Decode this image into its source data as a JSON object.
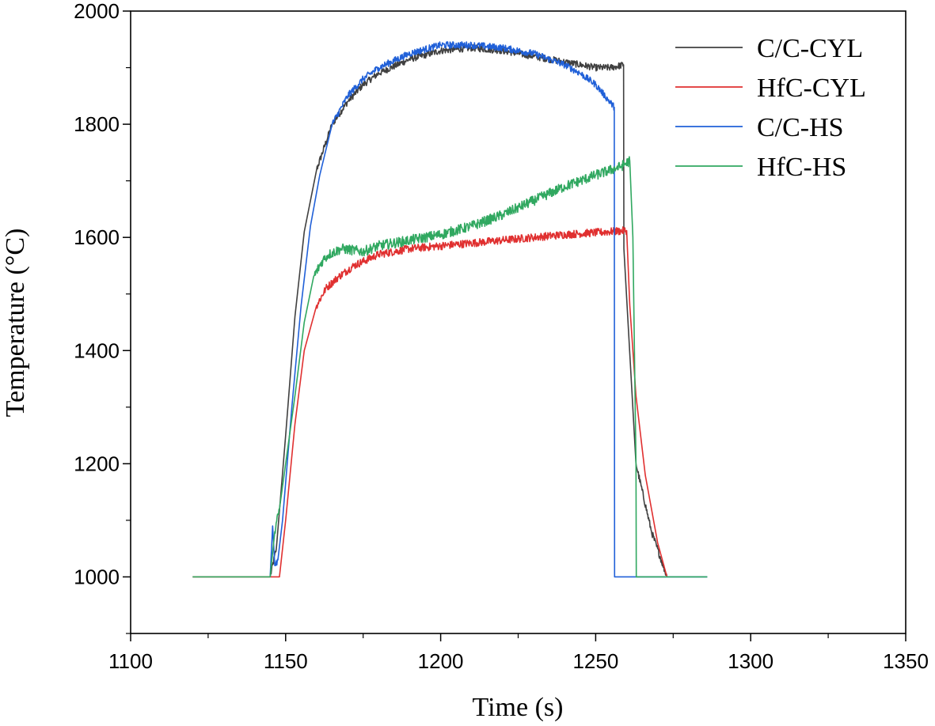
{
  "chart_data": {
    "type": "line",
    "title": "",
    "xlabel": "Time (s)",
    "ylabel": "Temperature (°C)",
    "xlim": [
      1100,
      1350
    ],
    "ylim": [
      900,
      2000
    ],
    "xticks": [
      1100,
      1150,
      1200,
      1250,
      1300,
      1350
    ],
    "xtick_labels": [
      "1100",
      "1150",
      "1200",
      "1250",
      "1300",
      "1350"
    ],
    "yticks": [
      1000,
      1200,
      1400,
      1600,
      1800,
      2000
    ],
    "ytick_labels": [
      "1000",
      "1200",
      "1400",
      "1600",
      "1800",
      "2000"
    ],
    "legend_position": "top-right",
    "grid": false,
    "series": [
      {
        "name": "C/C-CYL",
        "color": "#404040",
        "noise": 6,
        "x": [
          1145,
          1147,
          1150,
          1153,
          1156,
          1160,
          1165,
          1170,
          1175,
          1180,
          1190,
          1200,
          1210,
          1220,
          1230,
          1240,
          1250,
          1255,
          1259,
          1259.1,
          1263,
          1268,
          1273
        ],
        "y": [
          1000,
          1050,
          1250,
          1460,
          1610,
          1720,
          1800,
          1840,
          1870,
          1890,
          1915,
          1930,
          1935,
          1930,
          1920,
          1910,
          1900,
          1900,
          1905,
          1580,
          1200,
          1080,
          1000
        ]
      },
      {
        "name": "HfC-CYL",
        "color": "#e03030",
        "noise": 7,
        "x": [
          1120,
          1148,
          1150,
          1153,
          1156,
          1160,
          1163,
          1167,
          1172,
          1180,
          1190,
          1200,
          1220,
          1240,
          1260,
          1261,
          1263,
          1266,
          1270,
          1273
        ],
        "y": [
          1000,
          1000,
          1100,
          1270,
          1400,
          1480,
          1510,
          1530,
          1550,
          1570,
          1580,
          1585,
          1595,
          1605,
          1612,
          1480,
          1320,
          1180,
          1060,
          1000
        ]
      },
      {
        "name": "C/C-HS",
        "color": "#2060d8",
        "noise": 6,
        "x": [
          1145,
          1145.8,
          1146.5,
          1147.5,
          1149,
          1152,
          1155,
          1158,
          1161,
          1165,
          1170,
          1175,
          1180,
          1190,
          1200,
          1210,
          1220,
          1230,
          1240,
          1245,
          1250,
          1253,
          1256,
          1256.1,
          1286
        ],
        "y": [
          1000,
          1090,
          1020,
          1030,
          1100,
          1300,
          1480,
          1620,
          1710,
          1800,
          1850,
          1880,
          1900,
          1925,
          1940,
          1940,
          1935,
          1925,
          1905,
          1890,
          1870,
          1850,
          1830,
          1000,
          1000
        ]
      },
      {
        "name": "HfC-HS",
        "color": "#30a860",
        "noise": 9,
        "x": [
          1120,
          1145,
          1146.5,
          1148,
          1150,
          1153,
          1156,
          1159,
          1162,
          1164,
          1168,
          1175,
          1180,
          1190,
          1200,
          1210,
          1220,
          1230,
          1240,
          1250,
          1258,
          1261,
          1262,
          1262.5,
          1263,
          1263.1,
          1286
        ],
        "y": [
          1000,
          1000,
          1080,
          1120,
          1200,
          1320,
          1450,
          1530,
          1560,
          1570,
          1580,
          1575,
          1585,
          1595,
          1605,
          1620,
          1640,
          1665,
          1690,
          1710,
          1725,
          1735,
          1600,
          1400,
          1200,
          1000,
          1000
        ]
      }
    ]
  }
}
